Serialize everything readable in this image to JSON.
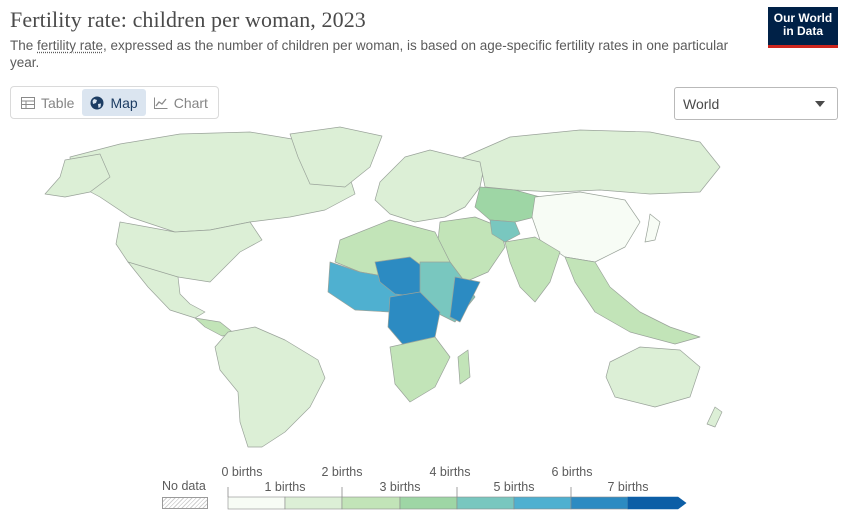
{
  "header": {
    "title": "Fertility rate: children per woman, 2023",
    "subtitle_before": "The ",
    "subtitle_link": "fertility rate",
    "subtitle_after": ", expressed as the number of children per woman, is based on age-specific fertility rates in one particular year.",
    "logo_line1": "Our World",
    "logo_line2": "in Data"
  },
  "tabs": [
    {
      "label": "Table",
      "icon": "table-icon",
      "active": false
    },
    {
      "label": "Map",
      "icon": "globe-icon",
      "active": true
    },
    {
      "label": "Chart",
      "icon": "line-chart-icon",
      "active": false
    }
  ],
  "region_select": {
    "value": "World"
  },
  "legend": {
    "no_data_label": "No data",
    "bins_top": [
      "0 births",
      "2 births",
      "4 births",
      "6 births"
    ],
    "bins_bottom": [
      "1 births",
      "3 births",
      "5 births",
      "7 births"
    ],
    "colors": [
      "#f7fcf5",
      "#dcefd6",
      "#c2e4b8",
      "#9ed6a5",
      "#79c7bf",
      "#4fb0d0",
      "#2c8bc2",
      "#0c5ea6"
    ]
  },
  "colors": {
    "ocean": "#ffffff",
    "border": "#9aa39a",
    "accent": "#0c5ea6"
  }
}
